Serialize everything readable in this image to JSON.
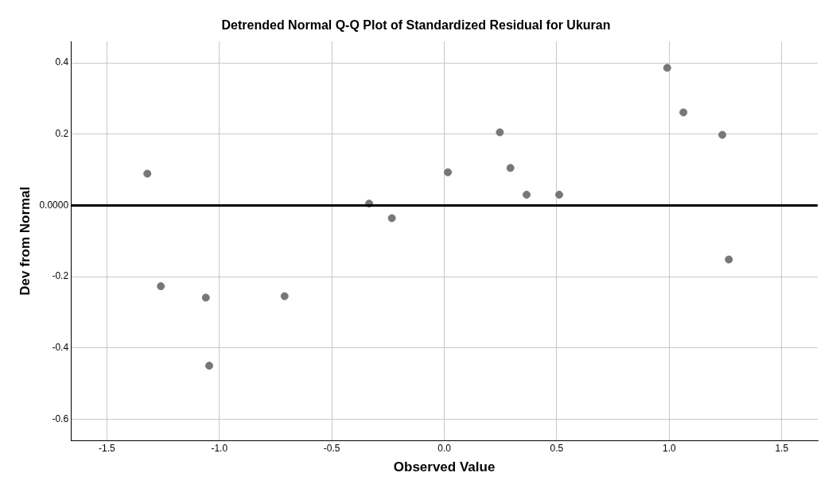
{
  "chart_data": {
    "type": "scatter",
    "title": "Detrended Normal Q-Q Plot of Standardized Residual for Ukuran",
    "xlabel": "Observed Value",
    "ylabel": "Dev from Normal",
    "x": [
      -1.32,
      -1.26,
      -1.06,
      -1.045,
      -0.71,
      -0.334,
      -0.233,
      0.016,
      0.247,
      0.294,
      0.366,
      0.511,
      0.991,
      1.063,
      1.236,
      1.265
    ],
    "series": [
      {
        "color": "#777777",
        "values": [
          0.089,
          -0.227,
          -0.259,
          -0.45,
          -0.255,
          0.005,
          -0.036,
          0.093,
          0.205,
          0.105,
          0.03,
          0.03,
          0.386,
          0.261,
          0.198,
          -0.152
        ]
      }
    ],
    "xlim": [
      -1.66,
      1.66
    ],
    "ylim": [
      -0.66,
      0.46
    ],
    "xticks": [
      {
        "value": -1.5,
        "label": "-1.5"
      },
      {
        "value": -1,
        "label": "-1.0"
      },
      {
        "value": -0.5,
        "label": "-0.5"
      },
      {
        "value": 0,
        "label": "0.0"
      },
      {
        "value": 0.5,
        "label": "0.5"
      },
      {
        "value": 1,
        "label": "1.0"
      },
      {
        "value": 1.5,
        "label": "1.5"
      }
    ],
    "yticks": [
      0.4,
      0.2,
      {
        "value": 0,
        "label": "0.0000"
      },
      -0.2,
      -0.4,
      -0.6
    ],
    "ref_lines": [
      {
        "axis": "y",
        "value": 0,
        "color": "#000000"
      }
    ],
    "grid": true,
    "legend": false,
    "marker": "circle"
  }
}
